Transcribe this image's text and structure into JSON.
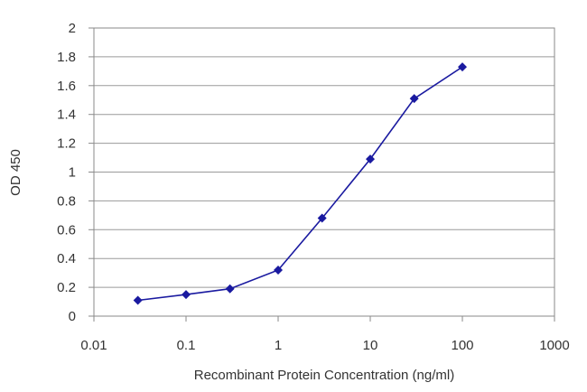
{
  "chart_data": {
    "type": "line",
    "title": "",
    "xlabel": "Recombinant Protein Concentration (ng/ml)",
    "ylabel": "OD 450",
    "x_scale": "log",
    "xlim": [
      0.01,
      1000
    ],
    "ylim": [
      0,
      2
    ],
    "x_ticks": [
      {
        "value": 0.01,
        "label": "0.01"
      },
      {
        "value": 0.1,
        "label": "0.1"
      },
      {
        "value": 1,
        "label": "1"
      },
      {
        "value": 10,
        "label": "10"
      },
      {
        "value": 100,
        "label": "100"
      },
      {
        "value": 1000,
        "label": "1000"
      }
    ],
    "y_ticks": [
      {
        "value": 0,
        "label": "0"
      },
      {
        "value": 0.2,
        "label": "0.2"
      },
      {
        "value": 0.4,
        "label": "0.4"
      },
      {
        "value": 0.6,
        "label": "0.6"
      },
      {
        "value": 0.8,
        "label": "0.8"
      },
      {
        "value": 1.0,
        "label": "1"
      },
      {
        "value": 1.2,
        "label": "1.2"
      },
      {
        "value": 1.4,
        "label": "1.4"
      },
      {
        "value": 1.6,
        "label": "1.6"
      },
      {
        "value": 1.8,
        "label": "1.8"
      },
      {
        "value": 2.0,
        "label": "2"
      }
    ],
    "grid": "horizontal",
    "series": [
      {
        "x": [
          0.03,
          0.1,
          0.3,
          1,
          3,
          10,
          30,
          100
        ],
        "y": [
          0.11,
          0.15,
          0.19,
          0.32,
          0.68,
          1.09,
          1.51,
          1.73
        ],
        "color": "#1a1aa0",
        "marker": "diamond"
      }
    ],
    "colors": {
      "grid": "#9a9a9a",
      "axis": "#8a8a8a",
      "text": "#333333"
    }
  }
}
